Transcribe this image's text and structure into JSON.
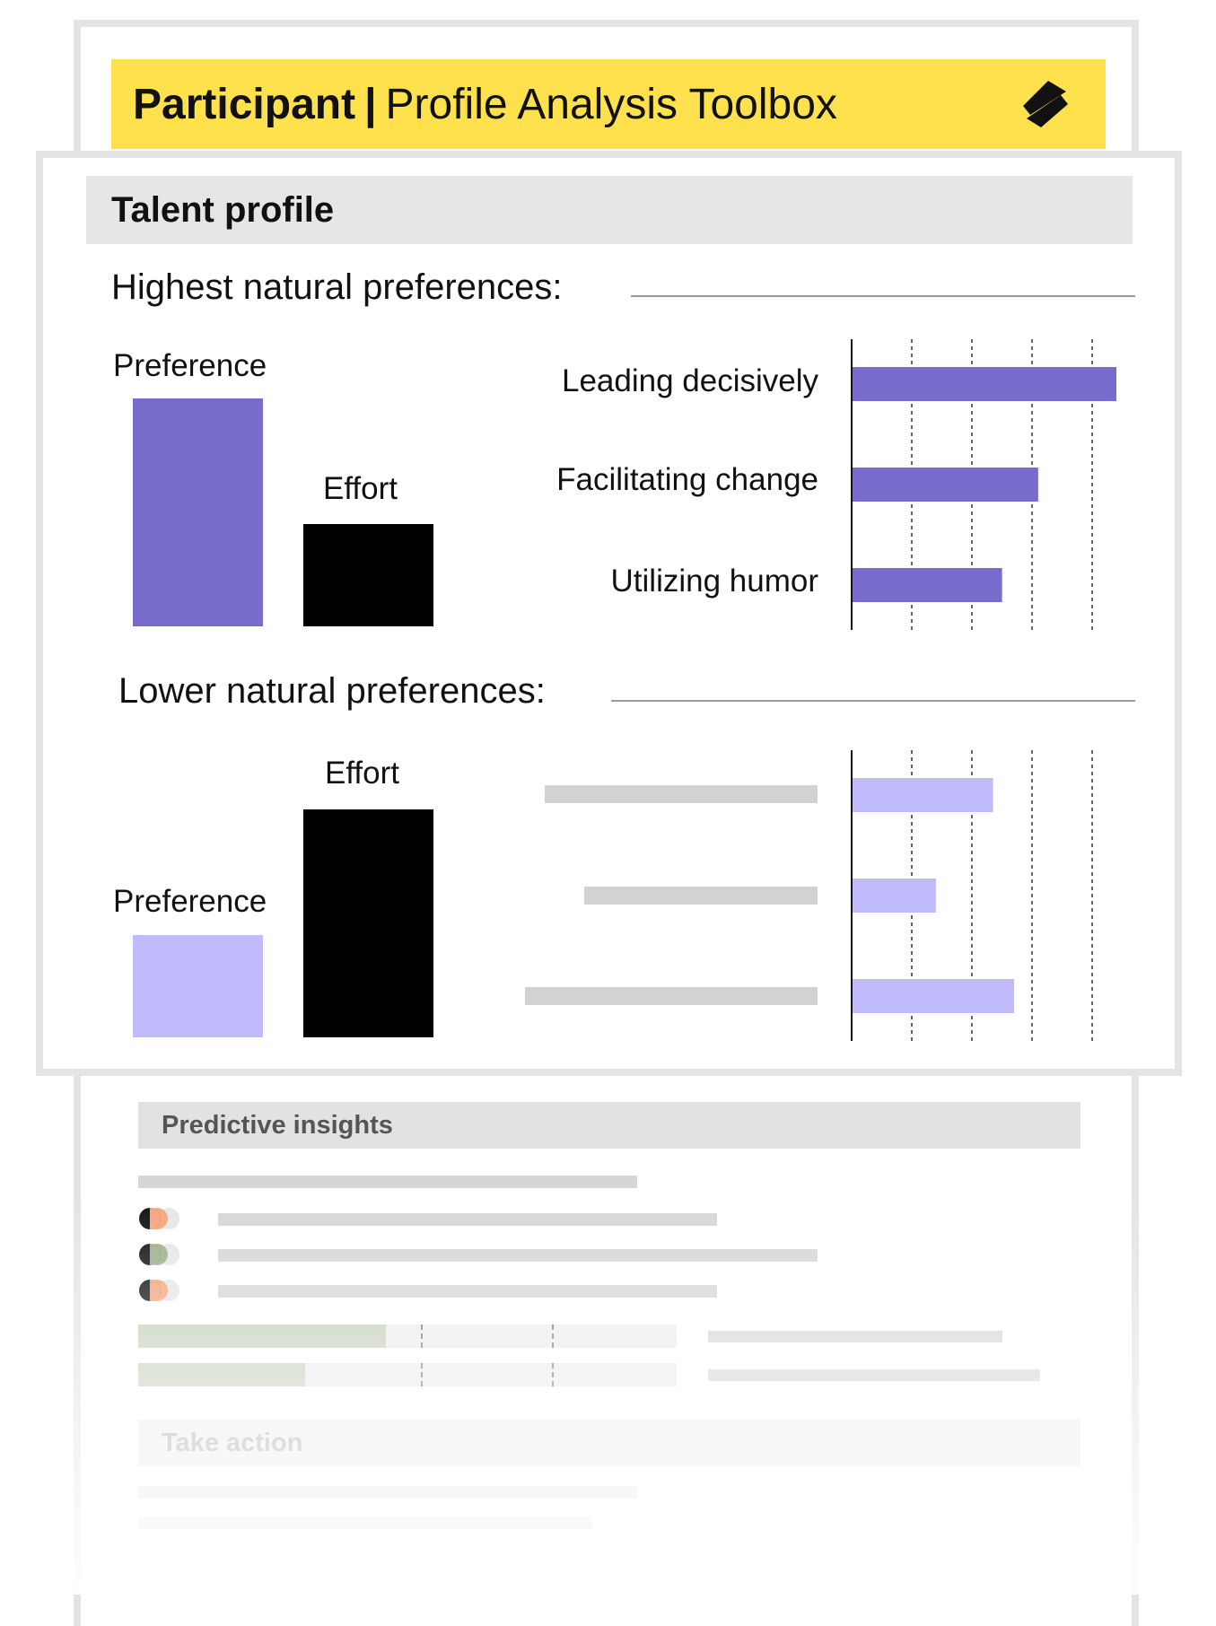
{
  "header": {
    "title_bold": "Participant",
    "separator": "|",
    "title_rest": "Profile Analysis Toolbox",
    "background_color": "#ffe14d",
    "logo_icon": "zigzag-logo-icon"
  },
  "talent_profile": {
    "title": "Talent profile",
    "highest": {
      "heading": "Highest natural preferences:",
      "preference_label": "Preference",
      "effort_label": "Effort",
      "preference_color": "#776ccb",
      "effort_color": "#000000",
      "preference_level": 1.0,
      "effort_level": 0.45
    },
    "lower": {
      "heading": "Lower natural preferences:",
      "preference_label": "Preference",
      "effort_label": "Effort",
      "preference_color": "#c0bbfa",
      "effort_color": "#000000",
      "preference_level": 0.45,
      "effort_level": 1.0
    }
  },
  "chart_data": [
    {
      "type": "bar",
      "orientation": "horizontal",
      "categories": [
        "Leading decisively",
        "Facilitating change",
        "Utilizing humor"
      ],
      "values": [
        4.4,
        3.1,
        2.5
      ],
      "xlim": [
        0,
        4.4
      ],
      "grid": "dashed vertical",
      "bar_color": "#776ccb"
    },
    {
      "type": "bar",
      "orientation": "horizontal",
      "categories": [
        "",
        "",
        ""
      ],
      "values": [
        2.35,
        1.4,
        2.7
      ],
      "xlim": [
        0,
        4.4
      ],
      "grid": "dashed vertical",
      "bar_color": "#c0bbfa"
    }
  ],
  "predictive_insights": {
    "title": "Predictive insights",
    "meters": [
      0.46,
      0.31
    ]
  },
  "take_action": {
    "title": "Take action"
  }
}
